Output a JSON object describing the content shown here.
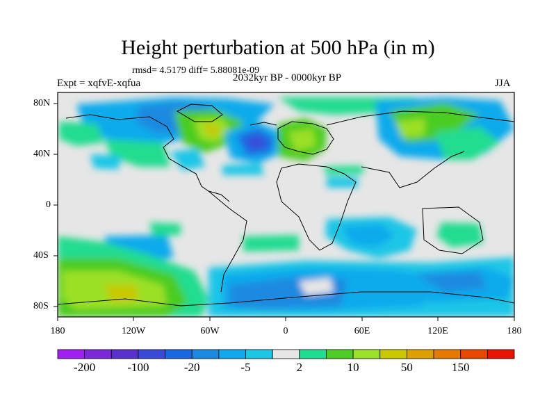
{
  "title": "Height perturbation at 500 hPa (in m)",
  "stats": "rmsd= 4.5179 diff= 5.88081e-09",
  "experiment": "Expt = xqfvE-xqfua",
  "period": "2032kyr BP - 0000kyr BP",
  "season": "JJA",
  "lat_labels": [
    "80N",
    "40N",
    "0",
    "40S",
    "80S"
  ],
  "lon_labels": [
    "180",
    "120W",
    "60W",
    "0",
    "60E",
    "120E",
    "180"
  ],
  "colorbar": {
    "colors": [
      "#a020f0",
      "#7a28d8",
      "#5a30cc",
      "#3a4ad8",
      "#1a68e0",
      "#1a8ae0",
      "#10aaec",
      "#1ec6e6",
      "#e6e6e6",
      "#20dc90",
      "#4ccc24",
      "#9ce028",
      "#c8c800",
      "#dca000",
      "#e67a00",
      "#e64800",
      "#e61400"
    ],
    "labels": [
      "-200",
      "-100",
      "-20",
      "-5",
      "2",
      "10",
      "50",
      "150"
    ]
  }
}
